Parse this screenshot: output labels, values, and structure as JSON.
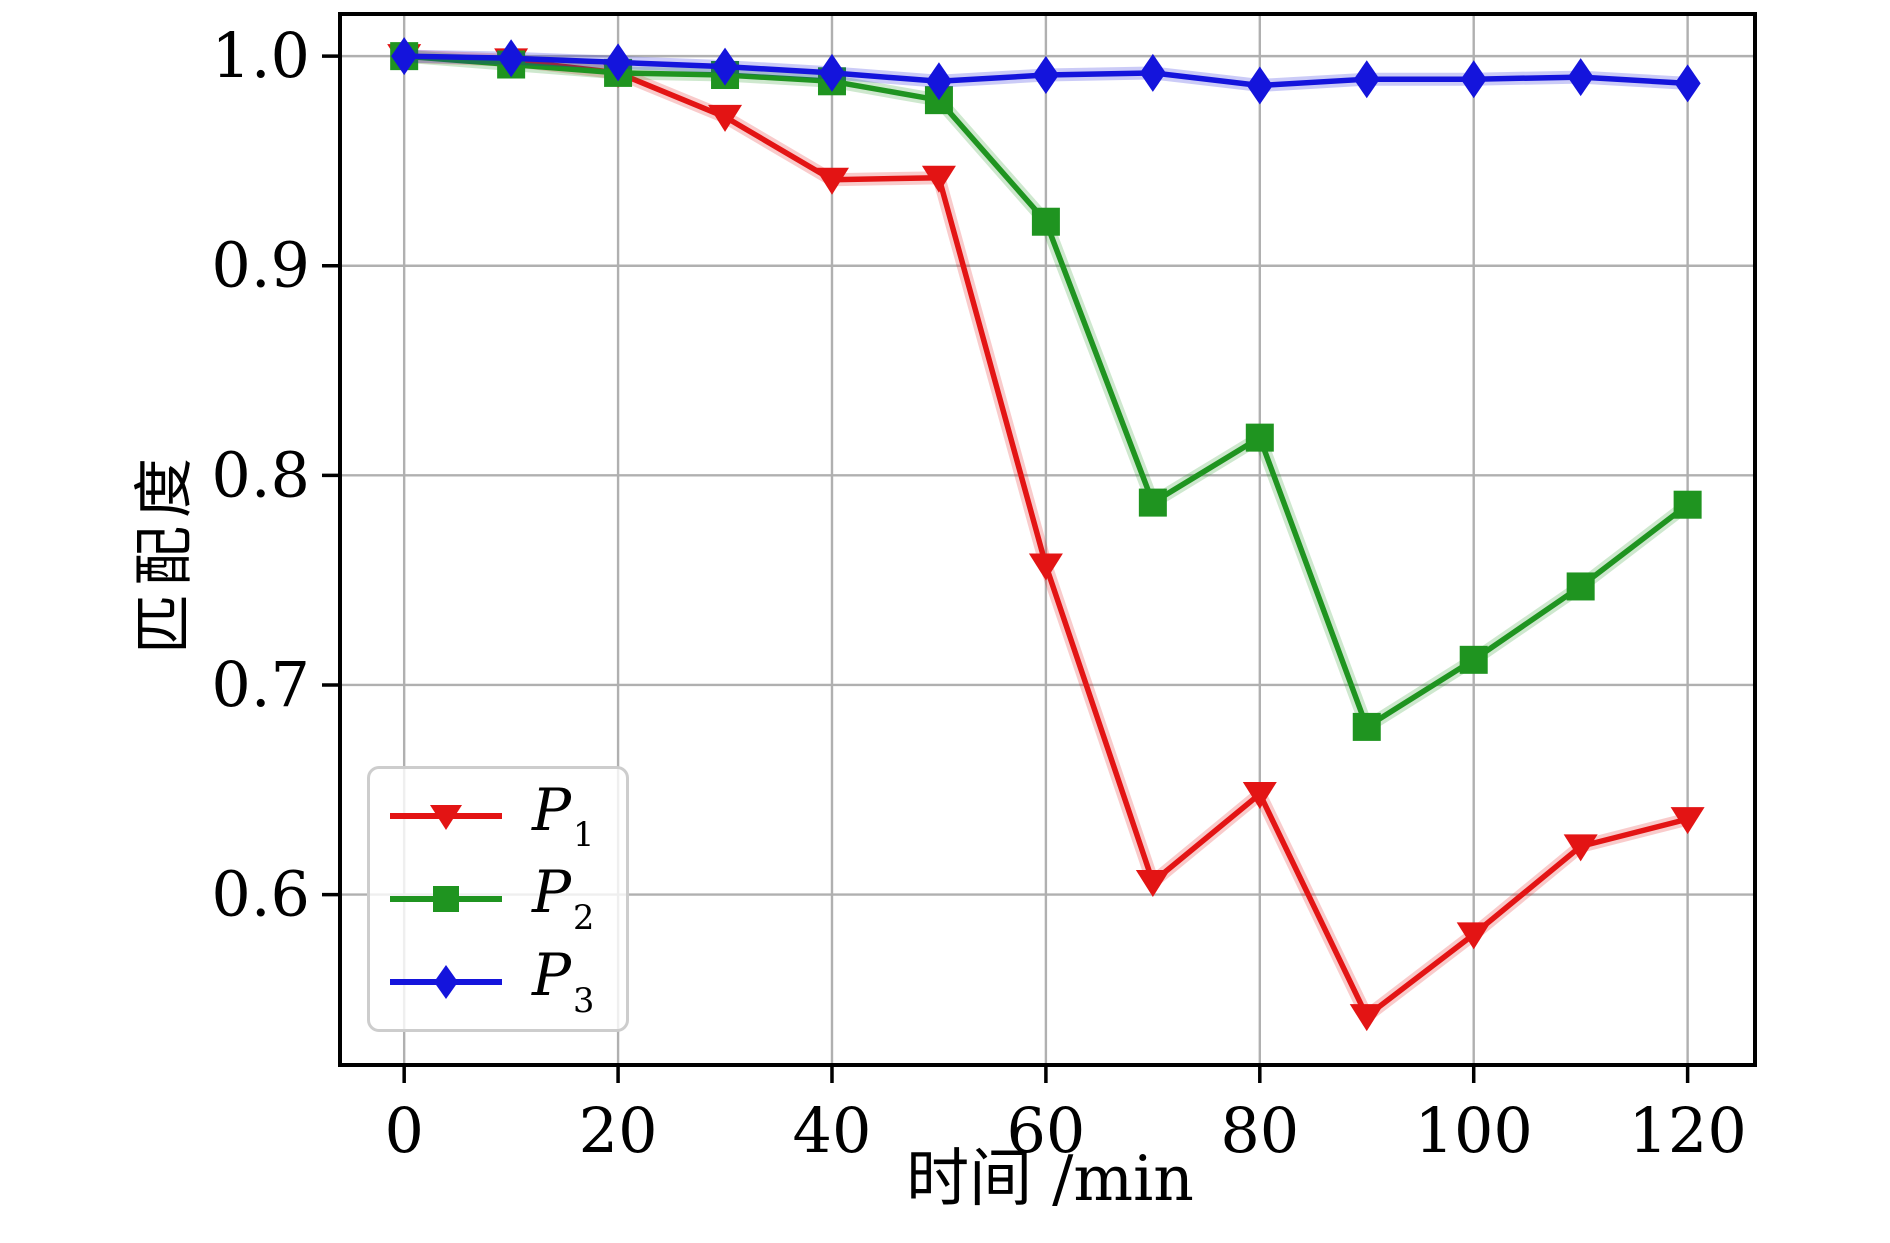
{
  "figure": {
    "background": "#ffffff"
  },
  "chart_data": {
    "type": "line",
    "title": "",
    "xlabel": "时间 /min",
    "ylabel": "匹配度",
    "x": [
      0,
      10,
      20,
      30,
      40,
      50,
      60,
      70,
      80,
      90,
      100,
      110,
      120
    ],
    "series": [
      {
        "name": "P",
        "subscript": "1",
        "marker": "triangle-down",
        "color": "#e31414",
        "values": [
          1.0,
          0.998,
          0.992,
          0.971,
          0.941,
          0.942,
          0.757,
          0.606,
          0.648,
          0.542,
          0.581,
          0.623,
          0.636
        ]
      },
      {
        "name": "P",
        "subscript": "2",
        "marker": "square",
        "color": "#1f9420",
        "values": [
          1.0,
          0.996,
          0.992,
          0.991,
          0.988,
          0.979,
          0.921,
          0.787,
          0.818,
          0.68,
          0.712,
          0.747,
          0.786
        ]
      },
      {
        "name": "P",
        "subscript": "3",
        "marker": "diamond",
        "color": "#1414dc",
        "values": [
          1.0,
          0.999,
          0.997,
          0.995,
          0.992,
          0.988,
          0.991,
          0.992,
          0.986,
          0.989,
          0.989,
          0.99,
          0.987
        ]
      }
    ],
    "xticks": [
      0,
      20,
      40,
      60,
      80,
      100,
      120
    ],
    "ytick_labels": [
      "0.6",
      "0.7",
      "0.8",
      "0.9",
      "1.0"
    ],
    "yticks": [
      0.6,
      0.7,
      0.8,
      0.9,
      1.0
    ],
    "xlim": [
      -6.0,
      126.3
    ],
    "ylim": [
      0.5187,
      1.0201
    ],
    "grid": true,
    "legend_position": "lower-left"
  },
  "colors": {
    "grid": "#b0b0b0",
    "spine": "#000000",
    "tick": "#000000",
    "tick_label": "#000000",
    "legend_border": "#cdcdcd"
  }
}
